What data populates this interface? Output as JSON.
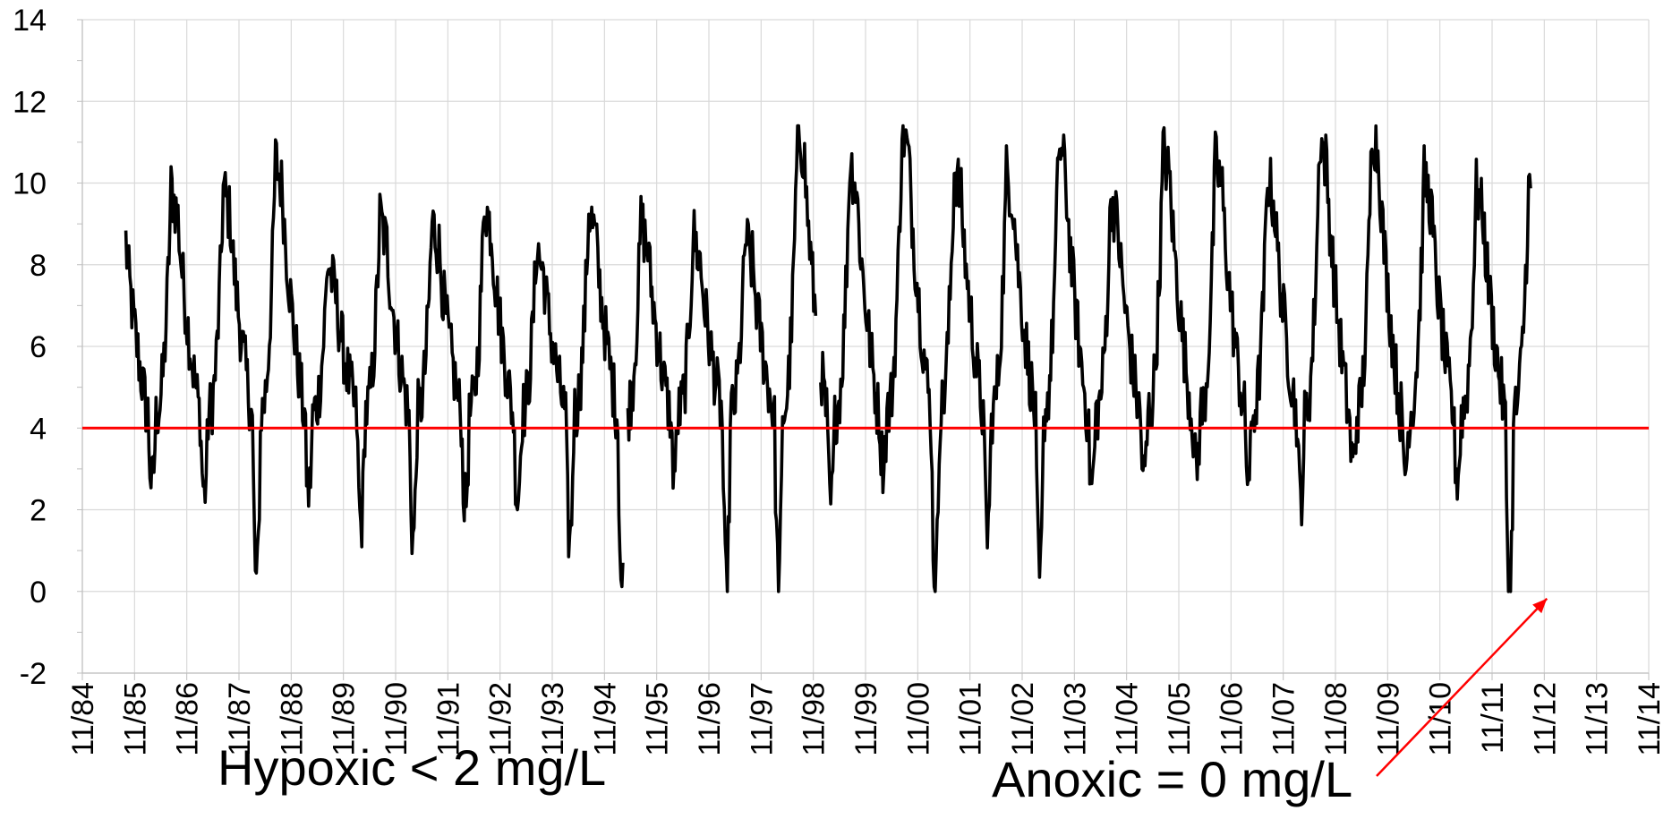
{
  "chart_data": {
    "type": "line",
    "title": "",
    "xlabel": "",
    "ylabel": "",
    "ylim": [
      -2,
      14
    ],
    "yticks": [
      -2,
      0,
      2,
      4,
      6,
      8,
      10,
      12,
      14
    ],
    "xlim": [
      "11/84",
      "11/14"
    ],
    "xtick_labels": [
      "11/84",
      "11/85",
      "11/86",
      "11/87",
      "11/88",
      "11/89",
      "11/90",
      "11/91",
      "11/92",
      "11/93",
      "11/94",
      "11/95",
      "11/96",
      "11/97",
      "11/98",
      "11/99",
      "11/00",
      "11/01",
      "11/02",
      "11/03",
      "11/04",
      "11/05",
      "11/06",
      "11/07",
      "11/08",
      "11/09",
      "11/10",
      "11/11",
      "11/12",
      "11/13",
      "11/14"
    ],
    "grid": true,
    "legend": "none",
    "series": [
      {
        "color": "#000000",
        "peaks": [
          9.3,
          9.9,
          9.9,
          10.6,
          8.1,
          9.2,
          9.1,
          9.6,
          8.5,
          9.4,
          9.1,
          8.8,
          8.7,
          11.4,
          10.6,
          11.4,
          10.4,
          10.3,
          11.0,
          9.7,
          10.8,
          10.6,
          10.2,
          11.2,
          11.4,
          10.2,
          9.9
        ],
        "troughs": [
          1.8,
          2.6,
          2.4,
          0.2,
          2.4,
          1.6,
          1.3,
          2.1,
          2.3,
          1.2,
          0.0,
          3.0,
          0.1,
          0.3,
          2.1,
          3.2,
          0.1,
          1.5,
          0.2,
          2.6,
          2.8,
          3.0,
          2.8,
          2.3,
          3.1,
          3.0,
          2.8,
          0.0
        ],
        "start_date": "1985-09",
        "end_date": "2012-08",
        "sampling": "weekly"
      },
      {
        "color": "#ff0000",
        "values": [
          4,
          4
        ]
      }
    ]
  },
  "annotations": {
    "hypoxic": "Hypoxic < 2 mg/L",
    "anoxic": "Anoxic = 0 mg/L"
  }
}
